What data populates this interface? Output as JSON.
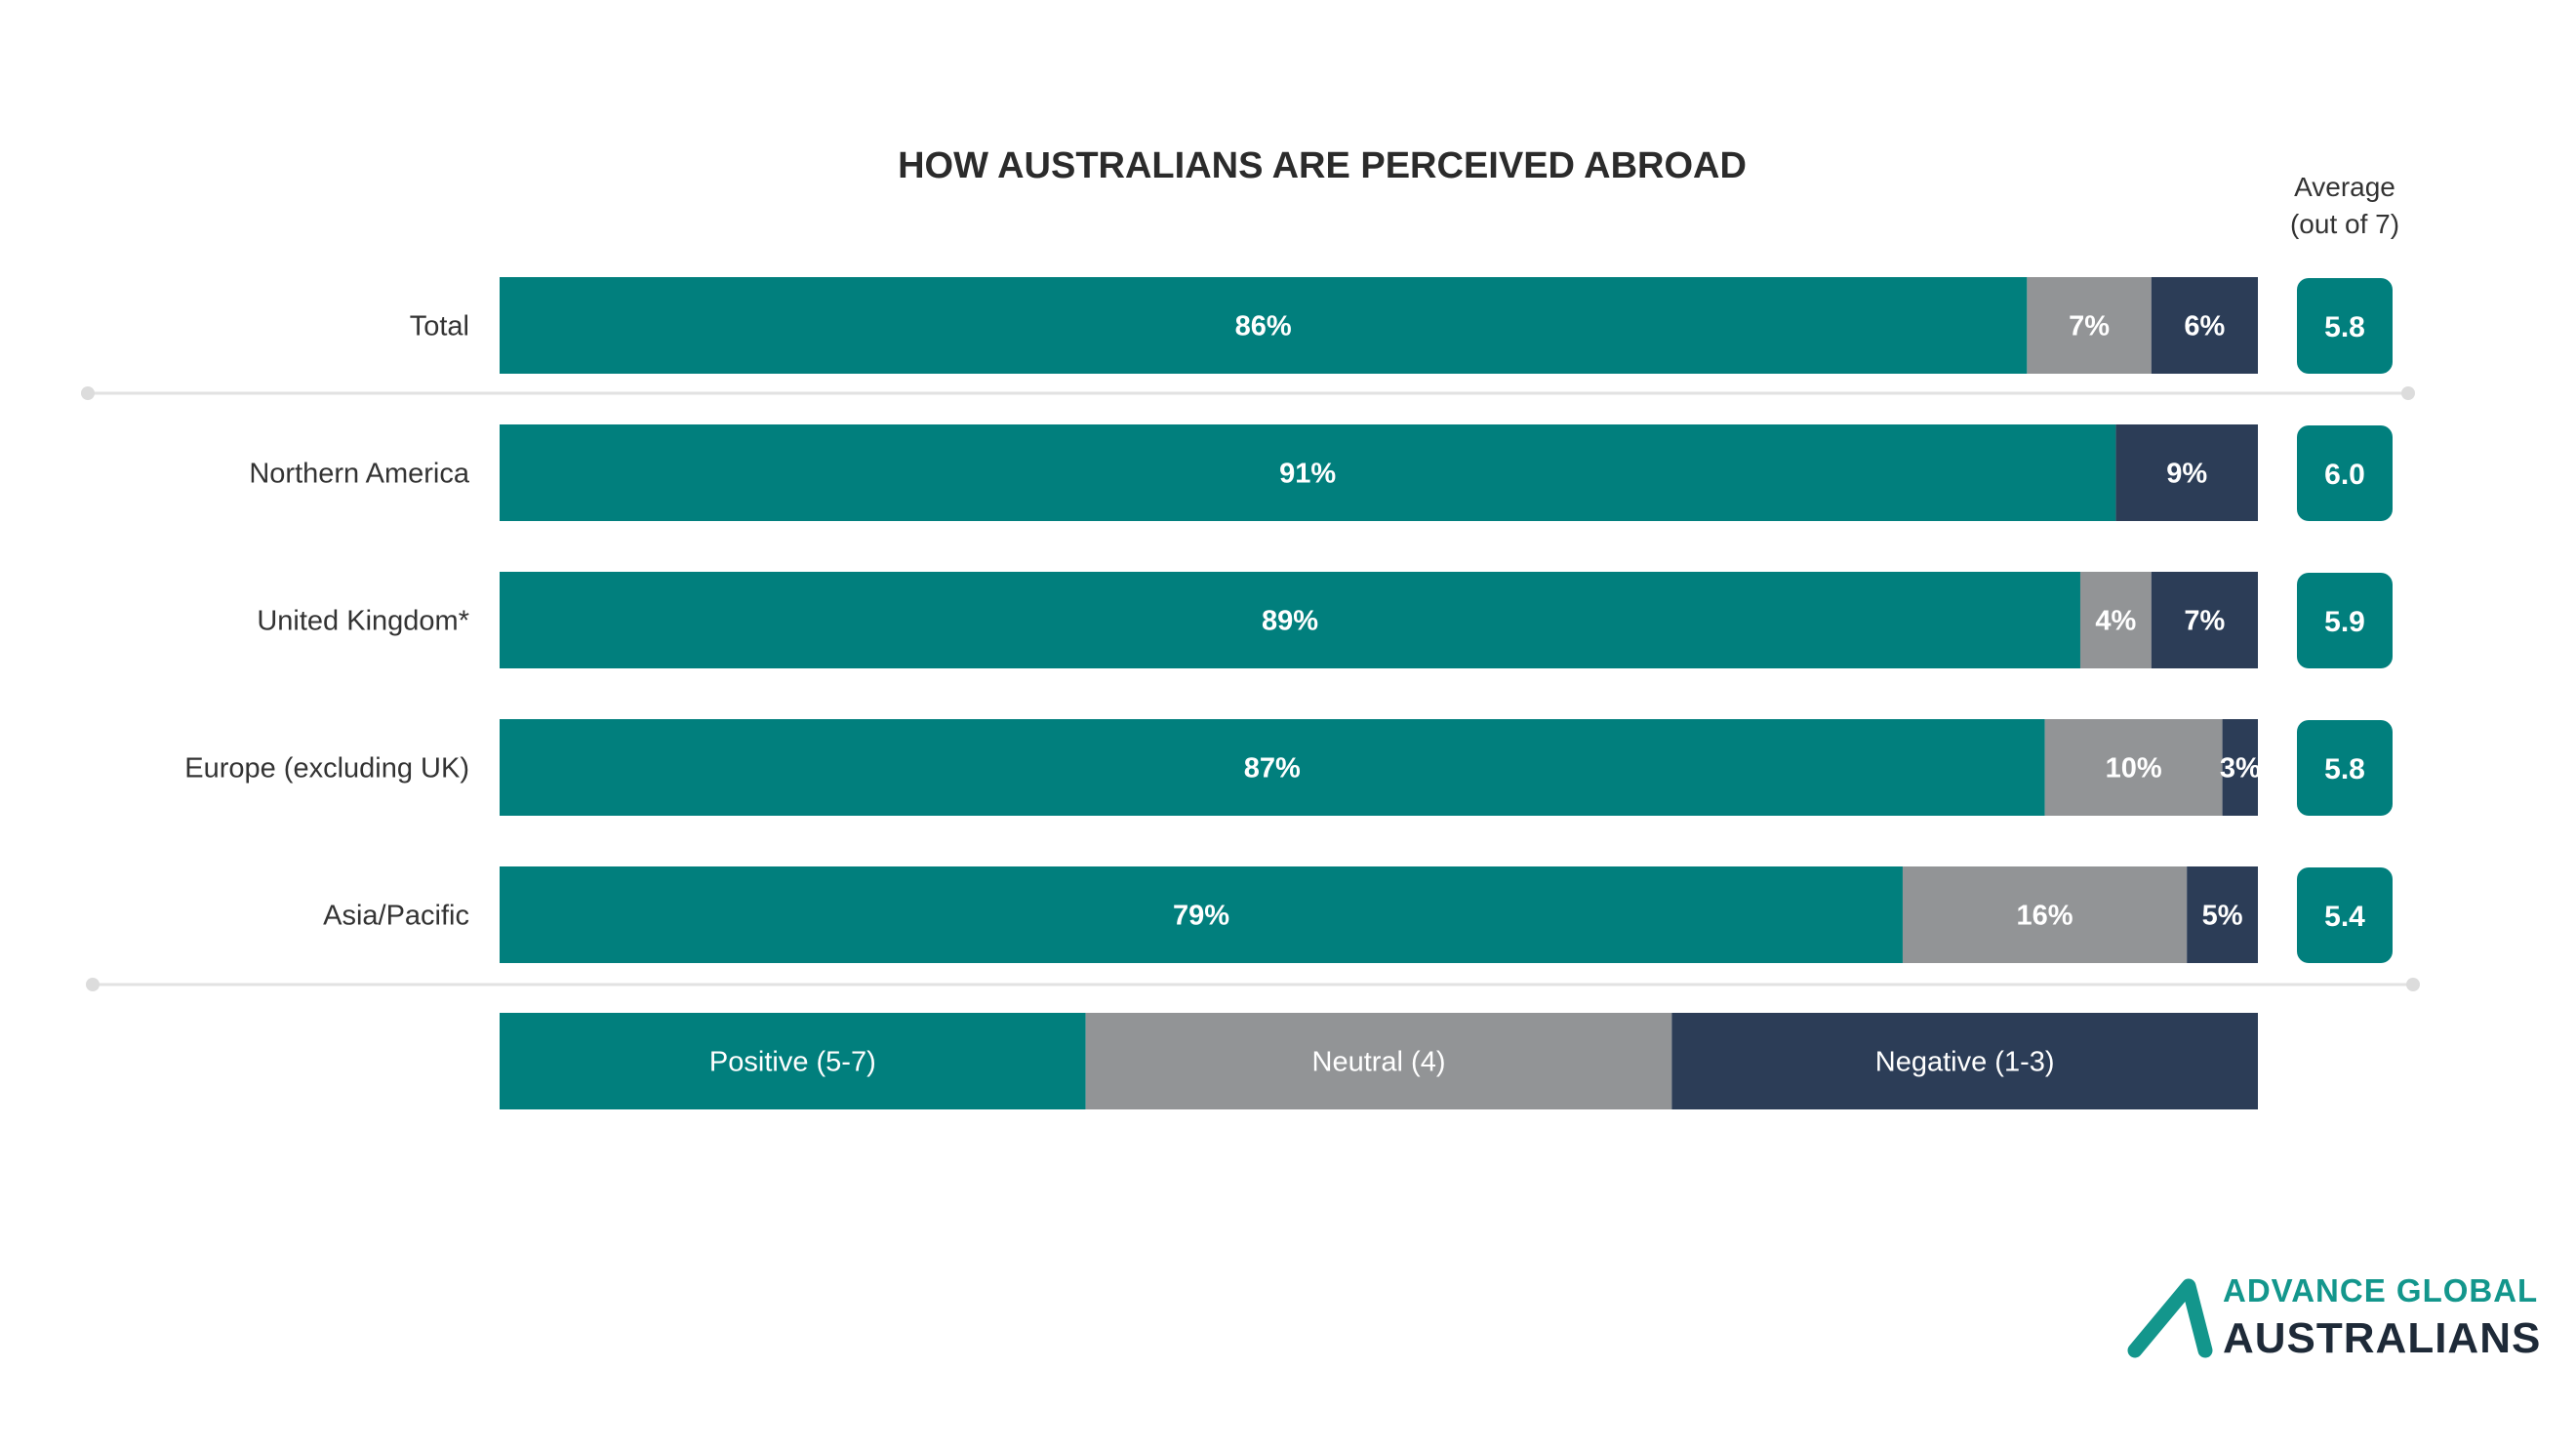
{
  "chart_data": {
    "type": "bar",
    "orientation": "horizontal",
    "stacked": true,
    "title": "HOW AUSTRALIANS ARE PERCEIVED ABROAD",
    "categories": [
      "Total",
      "Northern America",
      "United Kingdom*",
      "Europe (excluding UK)",
      "Asia/Pacific"
    ],
    "series": [
      {
        "name": "Positive (5-7)",
        "color": "#017f7d",
        "values": [
          86,
          91,
          89,
          87,
          79
        ],
        "labels": [
          "86%",
          "91%",
          "89%",
          "87%",
          "79%"
        ]
      },
      {
        "name": "Neutral (4)",
        "color": "#929496",
        "values": [
          7,
          0,
          4,
          10,
          16
        ],
        "labels": [
          "7%",
          "",
          "4%",
          "10%",
          "16%"
        ]
      },
      {
        "name": "Negative (1-3)",
        "color": "#2c3d57",
        "values": [
          6,
          9,
          7,
          3,
          5
        ],
        "labels": [
          "6%",
          "9%",
          "7%",
          "3%",
          "5%"
        ]
      }
    ],
    "average": {
      "header_line1": "Average",
      "header_line2": "(out of 7)",
      "values": [
        "5.8",
        "6.0",
        "5.9",
        "5.8",
        "5.4"
      ],
      "color": "#017f7d"
    },
    "xlim": [
      0,
      99
    ],
    "grid": false,
    "legend_position": "bottom"
  },
  "logo": {
    "line1": "ADVANCE GLOBAL",
    "line2": "AUSTRALIANS",
    "accent_color": "#13968c"
  }
}
